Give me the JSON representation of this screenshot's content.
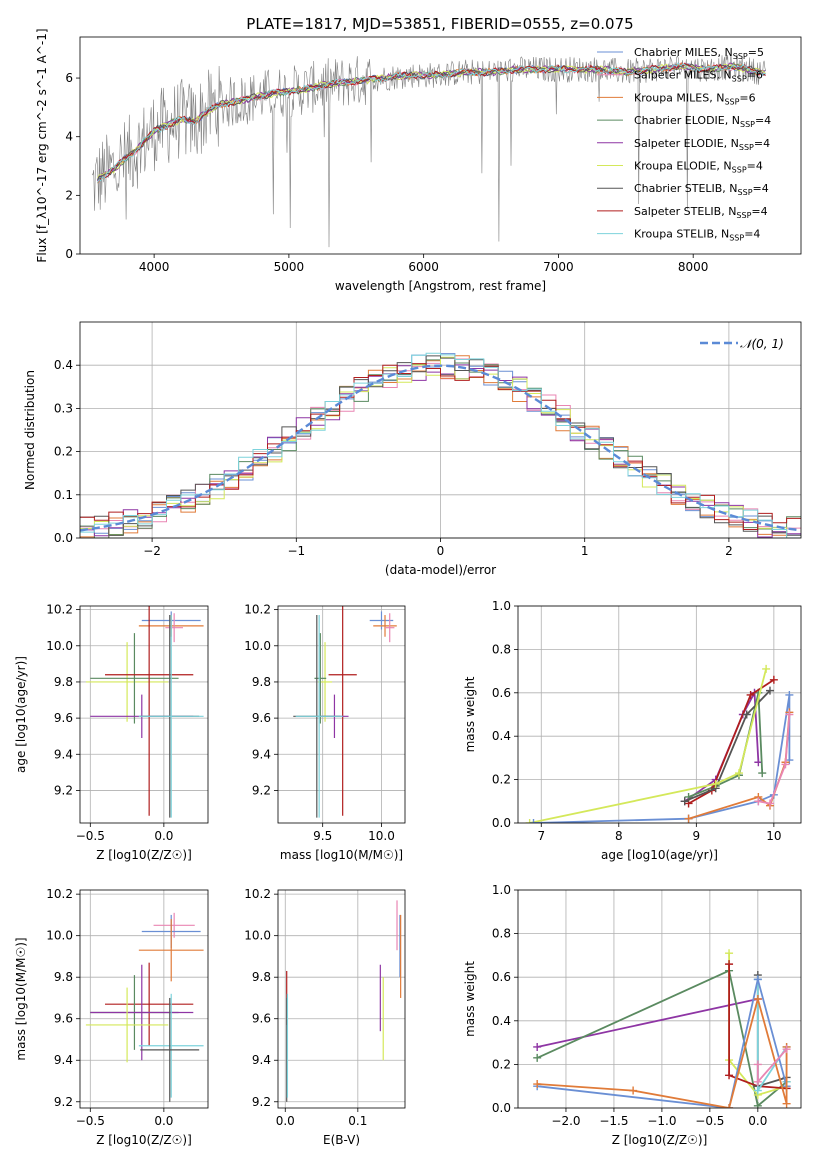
{
  "figure_title": "PLATE=1817, MJD=53851, FIBERID=0555, z=0.075",
  "models": [
    {
      "key": "chabrier_miles",
      "name": "Chabrier MILES",
      "nssp": "5",
      "color": "#6a8fd4"
    },
    {
      "key": "salpeter_miles",
      "name": "Salpeter MILES",
      "nssp": "6",
      "color": "#e986b3"
    },
    {
      "key": "kroupa_miles",
      "name": "Kroupa MILES",
      "nssp": "6",
      "color": "#e07b39"
    },
    {
      "key": "chabrier_elodie",
      "name": "Chabrier ELODIE",
      "nssp": "4",
      "color": "#5a8a60"
    },
    {
      "key": "salpeter_elodie",
      "name": "Salpeter ELODIE",
      "nssp": "4",
      "color": "#8e35a4"
    },
    {
      "key": "kroupa_elodie",
      "name": "Kroupa ELODIE",
      "nssp": "4",
      "color": "#d4e85a"
    },
    {
      "key": "chabrier_stelib",
      "name": "Chabrier STELIB",
      "nssp": "4",
      "color": "#555555"
    },
    {
      "key": "salpeter_stelib",
      "name": "Salpeter STELIB",
      "nssp": "4",
      "color": "#b01e1e"
    },
    {
      "key": "kroupa_stelib",
      "name": "Kroupa STELIB",
      "nssp": "4",
      "color": "#7dd3dc"
    }
  ],
  "chart_data": [
    {
      "id": "spectrum",
      "type": "line",
      "title": "PLATE=1817, MJD=53851, FIBERID=0555, z=0.075",
      "xlabel": "wavelength [Angstrom, rest frame]",
      "ylabel": "Flux [f_λ10^-17 erg cm^-2 s^-1 A^-1]",
      "xlim": [
        3450,
        8800
      ],
      "ylim": [
        0,
        7.4
      ],
      "xticks": [
        4000,
        5000,
        6000,
        7000,
        8000
      ],
      "yticks": [
        0,
        2,
        4,
        6
      ],
      "data_color": "#808080",
      "continuum": {
        "x": [
          3540,
          3600,
          3700,
          3800,
          3900,
          4000,
          4100,
          4200,
          4300,
          4400,
          4500,
          4700,
          4900,
          5100,
          5300,
          5500,
          5700,
          5900,
          6100,
          6300,
          6500,
          6700,
          6900,
          7100,
          7300,
          7500,
          7700,
          7900,
          8100,
          8300,
          8500
        ],
        "y": [
          2.3,
          2.6,
          2.9,
          3.3,
          3.7,
          4.2,
          4.4,
          4.6,
          4.5,
          4.9,
          5.1,
          5.3,
          5.5,
          5.6,
          5.8,
          5.9,
          6.0,
          6.1,
          6.1,
          6.2,
          6.2,
          6.3,
          6.3,
          6.3,
          6.3,
          6.2,
          6.3,
          6.4,
          6.3,
          6.4,
          6.2
        ]
      }
    },
    {
      "id": "residuals",
      "type": "line",
      "xlabel": "(data-model)/error",
      "ylabel": "Normed distribution",
      "xlim": [
        -2.5,
        2.5
      ],
      "ylim": [
        0,
        0.5
      ],
      "xticks": [
        -2,
        -1,
        0,
        1,
        2
      ],
      "yticks": [
        0.0,
        0.1,
        0.2,
        0.3,
        0.4
      ],
      "reference": {
        "name": "𝒩(0, 1)",
        "mu": 0,
        "sigma": 1,
        "color": "#5b8ad6",
        "dashed": true
      }
    },
    {
      "id": "age_vs_z",
      "type": "scatter",
      "xlabel": "Z [log10(Z/Z☉)]",
      "ylabel": "age  [log10(age/yr)]",
      "xlim": [
        -0.57,
        0.3
      ],
      "ylim": [
        9.02,
        10.22
      ],
      "xticks": [
        -0.5,
        0.0
      ],
      "yticks": [
        9.2,
        9.4,
        9.6,
        9.8,
        10.0,
        10.2
      ],
      "points": [
        {
          "model": "chabrier_miles",
          "x": 0.05,
          "y": 10.14,
          "xerr": 0.2,
          "yerr": 0.05
        },
        {
          "model": "kroupa_miles",
          "x": 0.05,
          "y": 10.11,
          "xerr": 0.22,
          "yerr": 0.06
        },
        {
          "model": "salpeter_miles",
          "x": 0.07,
          "y": 10.1,
          "xerr": 0.06,
          "yerr": 0.08
        },
        {
          "model": "kroupa_elodie",
          "x": -0.25,
          "y": 9.8,
          "xerr": 0.28,
          "yerr": 0.22
        },
        {
          "model": "chabrier_elodie",
          "x": -0.2,
          "y": 9.82,
          "xerr": 0.3,
          "yerr": 0.25
        },
        {
          "model": "salpeter_stelib",
          "x": -0.1,
          "y": 9.84,
          "xerr": 0.3,
          "yerr": 0.78
        },
        {
          "model": "salpeter_elodie",
          "x": -0.15,
          "y": 9.61,
          "xerr": 0.35,
          "yerr": 0.12
        },
        {
          "model": "chabrier_stelib",
          "x": 0.04,
          "y": 9.61,
          "xerr": 0.2,
          "yerr": 0.56
        },
        {
          "model": "kroupa_stelib",
          "x": 0.05,
          "y": 9.61,
          "xerr": 0.22,
          "yerr": 0.56
        }
      ]
    },
    {
      "id": "age_vs_mass",
      "type": "scatter",
      "xlabel": "mass [log10(M/M☉)]",
      "ylabel": "",
      "xlim": [
        9.12,
        10.2
      ],
      "ylim": [
        9.02,
        10.22
      ],
      "xticks": [
        9.5,
        10.0
      ],
      "yticks": [
        9.2,
        9.4,
        9.6,
        9.8,
        10.0,
        10.2
      ],
      "points": [
        {
          "model": "chabrier_miles",
          "x": 10.0,
          "y": 10.14,
          "xerr": 0.1,
          "yerr": 0.05
        },
        {
          "model": "kroupa_miles",
          "x": 10.03,
          "y": 10.11,
          "xerr": 0.1,
          "yerr": 0.06
        },
        {
          "model": "salpeter_miles",
          "x": 10.07,
          "y": 10.1,
          "xerr": 0.04,
          "yerr": 0.08
        },
        {
          "model": "kroupa_elodie",
          "x": 9.52,
          "y": 9.8,
          "xerr": 0.06,
          "yerr": 0.22
        },
        {
          "model": "chabrier_elodie",
          "x": 9.48,
          "y": 9.82,
          "xerr": 0.05,
          "yerr": 0.25
        },
        {
          "model": "salpeter_stelib",
          "x": 9.67,
          "y": 9.84,
          "xerr": 0.12,
          "yerr": 0.78
        },
        {
          "model": "salpeter_elodie",
          "x": 9.6,
          "y": 9.61,
          "xerr": 0.12,
          "yerr": 0.12
        },
        {
          "model": "chabrier_stelib",
          "x": 9.45,
          "y": 9.61,
          "xerr": 0.2,
          "yerr": 0.56
        },
        {
          "model": "kroupa_stelib",
          "x": 9.47,
          "y": 9.61,
          "xerr": 0.2,
          "yerr": 0.56
        }
      ]
    },
    {
      "id": "weight_vs_age",
      "type": "line",
      "xlabel": "age  [log10(age/yr)]",
      "ylabel": "mass weight",
      "xlim": [
        6.7,
        10.35
      ],
      "ylim": [
        0,
        1.0
      ],
      "xticks": [
        7,
        8,
        9,
        10
      ],
      "yticks": [
        0.0,
        0.2,
        0.4,
        0.6,
        0.8,
        1.0
      ],
      "series": [
        {
          "model": "salpeter_elodie",
          "x": [
            8.85,
            9.25,
            9.6,
            9.75,
            9.8
          ],
          "y": [
            0.1,
            0.2,
            0.5,
            0.6,
            0.28
          ]
        },
        {
          "model": "chabrier_elodie",
          "x": [
            8.9,
            9.25,
            9.55,
            9.8,
            9.85
          ],
          "y": [
            0.12,
            0.17,
            0.22,
            0.6,
            0.23
          ]
        },
        {
          "model": "salpeter_stelib",
          "x": [
            8.9,
            9.2,
            9.7,
            10.0
          ],
          "y": [
            0.09,
            0.15,
            0.59,
            0.66
          ]
        },
        {
          "model": "chabrier_stelib",
          "x": [
            8.85,
            9.25,
            9.65,
            9.95
          ],
          "y": [
            0.1,
            0.16,
            0.5,
            0.61
          ]
        },
        {
          "model": "kroupa_elodie",
          "x": [
            6.85,
            9.25,
            9.55,
            9.9
          ],
          "y": [
            0.0,
            0.18,
            0.23,
            0.71
          ]
        },
        {
          "model": "chabrier_miles",
          "x": [
            6.9,
            8.9,
            9.8,
            10.0,
            10.2,
            10.2
          ],
          "y": [
            0.0,
            0.02,
            0.1,
            0.13,
            0.59,
            0.29
          ]
        },
        {
          "model": "kroupa_miles",
          "x": [
            8.9,
            9.8,
            9.95,
            10.15,
            10.2
          ],
          "y": [
            0.02,
            0.12,
            0.08,
            0.28,
            0.51
          ]
        },
        {
          "model": "salpeter_miles",
          "x": [
            9.8,
            9.95,
            10.15,
            10.2
          ],
          "y": [
            0.1,
            0.09,
            0.27,
            0.5
          ]
        }
      ]
    },
    {
      "id": "mass_vs_z",
      "type": "scatter",
      "xlabel": "Z [log10(Z/Z☉)]",
      "ylabel": "mass [log10(M/M☉)]",
      "xlim": [
        -0.57,
        0.3
      ],
      "ylim": [
        9.17,
        10.22
      ],
      "xticks": [
        -0.5,
        0.0
      ],
      "yticks": [
        9.2,
        9.4,
        9.6,
        9.8,
        10.0,
        10.2
      ],
      "points": [
        {
          "model": "salpeter_miles",
          "x": 0.07,
          "y": 10.05,
          "xerr": 0.14,
          "yerr": 0.06
        },
        {
          "model": "chabrier_miles",
          "x": 0.05,
          "y": 10.02,
          "xerr": 0.2,
          "yerr": 0.08
        },
        {
          "model": "kroupa_miles",
          "x": 0.05,
          "y": 9.93,
          "xerr": 0.22,
          "yerr": 0.15
        },
        {
          "model": "salpeter_stelib",
          "x": -0.1,
          "y": 9.67,
          "xerr": 0.3,
          "yerr": 0.2
        },
        {
          "model": "chabrier_elodie",
          "x": -0.2,
          "y": 9.63,
          "xerr": 0.3,
          "yerr": 0.18
        },
        {
          "model": "salpeter_elodie",
          "x": -0.15,
          "y": 9.63,
          "xerr": 0.35,
          "yerr": 0.23
        },
        {
          "model": "kroupa_elodie",
          "x": -0.25,
          "y": 9.57,
          "xerr": 0.28,
          "yerr": 0.18
        },
        {
          "model": "kroupa_stelib",
          "x": 0.05,
          "y": 9.47,
          "xerr": 0.22,
          "yerr": 0.25
        },
        {
          "model": "chabrier_stelib",
          "x": 0.04,
          "y": 9.45,
          "xerr": 0.2,
          "yerr": 0.25
        }
      ]
    },
    {
      "id": "mass_vs_ebv",
      "type": "scatter",
      "xlabel": "E(B-V)",
      "ylabel": "",
      "xlim": [
        -0.01,
        0.165
      ],
      "ylim": [
        9.17,
        10.22
      ],
      "xticks": [
        0.0,
        0.1
      ],
      "yticks": [
        9.2,
        9.4,
        9.6,
        9.8,
        10.0,
        10.2
      ],
      "points": [
        {
          "model": "salpeter_miles",
          "x": 0.154,
          "y": 10.05,
          "xerr": 0,
          "yerr": 0.12
        },
        {
          "model": "chabrier_miles",
          "x": 0.158,
          "y": 9.95,
          "xerr": 0,
          "yerr": 0.15
        },
        {
          "model": "kroupa_miles",
          "x": 0.159,
          "y": 9.9,
          "xerr": 0,
          "yerr": 0.2
        },
        {
          "model": "salpeter_elodie",
          "x": 0.131,
          "y": 9.7,
          "xerr": 0,
          "yerr": 0.16
        },
        {
          "model": "kroupa_elodie",
          "x": 0.135,
          "y": 9.6,
          "xerr": 0,
          "yerr": 0.2
        },
        {
          "model": "salpeter_stelib",
          "x": 0.002,
          "y": 9.7,
          "xerr": 0,
          "yerr": 0.13
        },
        {
          "model": "chabrier_stelib",
          "x": 0.002,
          "y": 9.45,
          "xerr": 0,
          "yerr": 0.25
        },
        {
          "model": "kroupa_stelib",
          "x": 0.003,
          "y": 9.47,
          "xerr": 0,
          "yerr": 0.25
        }
      ]
    },
    {
      "id": "weight_vs_z",
      "type": "line",
      "xlabel": "Z [log10(Z/Z☉)]",
      "ylabel": "mass weight",
      "xlim": [
        -2.5,
        0.45
      ],
      "ylim": [
        0,
        1.0
      ],
      "xticks": [
        -2.0,
        -1.5,
        -1.0,
        -0.5,
        0.0
      ],
      "yticks": [
        0.0,
        0.2,
        0.4,
        0.6,
        0.8,
        1.0
      ],
      "series": [
        {
          "model": "salpeter_elodie",
          "x": [
            -2.3,
            0.0
          ],
          "y": [
            0.28,
            0.5
          ]
        },
        {
          "model": "chabrier_elodie",
          "x": [
            -2.3,
            -0.3,
            0.0,
            0.3
          ],
          "y": [
            0.23,
            0.63,
            0.01,
            0.12
          ]
        },
        {
          "model": "kroupa_elodie",
          "x": [
            -0.3,
            -0.3,
            0.0,
            0.3
          ],
          "y": [
            0.71,
            0.22,
            0.06,
            0.1
          ]
        },
        {
          "model": "salpeter_stelib",
          "x": [
            -0.3,
            -0.3,
            0.0,
            0.3
          ],
          "y": [
            0.66,
            0.15,
            0.1,
            0.09
          ]
        },
        {
          "model": "chabrier_stelib",
          "x": [
            0.0,
            0.0,
            0.3
          ],
          "y": [
            0.61,
            0.1,
            0.14
          ]
        },
        {
          "model": "kroupa_stelib",
          "x": [
            0.0,
            0.0,
            0.3,
            0.3
          ],
          "y": [
            0.59,
            0.08,
            0.28,
            0.12
          ]
        },
        {
          "model": "chabrier_miles",
          "x": [
            -2.3,
            -0.3,
            0.0,
            0.3
          ],
          "y": [
            0.1,
            0.0,
            0.59,
            0.1
          ]
        },
        {
          "model": "kroupa_miles",
          "x": [
            -2.3,
            -1.3,
            -0.3,
            0.0,
            0.3,
            0.3
          ],
          "y": [
            0.11,
            0.08,
            0.0,
            0.5,
            0.02,
            0.28
          ]
        },
        {
          "model": "salpeter_miles",
          "x": [
            0.0,
            0.0,
            0.3
          ],
          "y": [
            0.2,
            0.12,
            0.27
          ]
        }
      ]
    }
  ]
}
